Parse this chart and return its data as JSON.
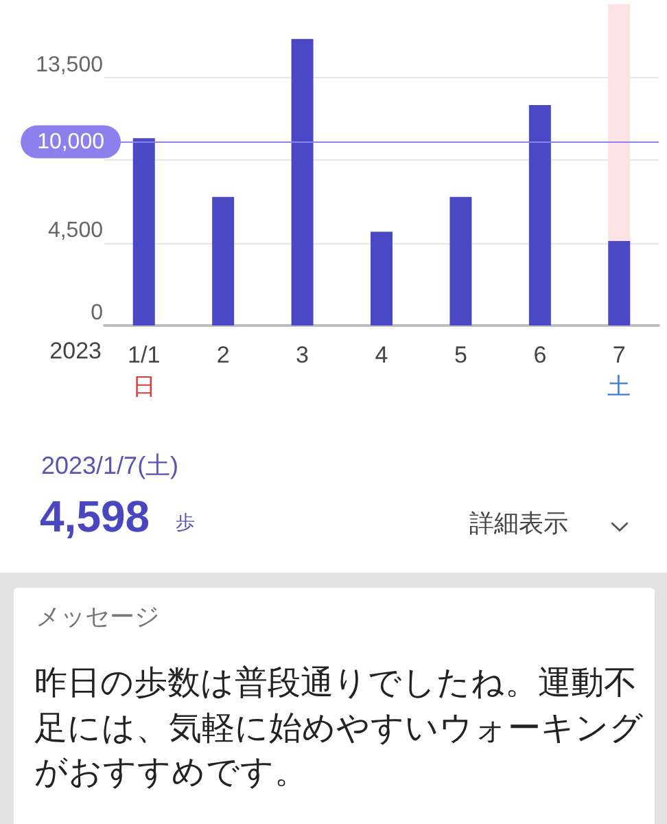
{
  "chart_data": {
    "type": "bar",
    "categories": [
      "1/1\n日",
      "2",
      "3",
      "4",
      "5",
      "6",
      "7\n土"
    ],
    "values": [
      10200,
      7000,
      15600,
      5100,
      7000,
      12000,
      4598
    ],
    "color": "#4a48c4",
    "xlabel": "2023",
    "ylim": [
      0,
      17500
    ],
    "yticks": [
      0,
      {
        "value": 4500,
        "label": "4,500"
      },
      {
        "value": 9000,
        "label": null
      },
      {
        "value": 13500,
        "label": "13,500"
      }
    ],
    "grid": "y",
    "ref_lines": [
      {
        "axis": "y",
        "value": 10000,
        "label": "10,000",
        "color": "#8c80ec"
      }
    ],
    "bands": [
      {
        "axis": "x",
        "from": "7\n土",
        "to": "7\n土",
        "color": "#fde3e3"
      }
    ],
    "annotations": [
      "2023/1/7(土)",
      "4,598",
      "歩",
      "詳細表示",
      "メッセージ",
      "昨日の歩数は普段通りでしたね。運動不足には、気軽に始めやすいウォーキングがおすすめです。"
    ]
  }
}
